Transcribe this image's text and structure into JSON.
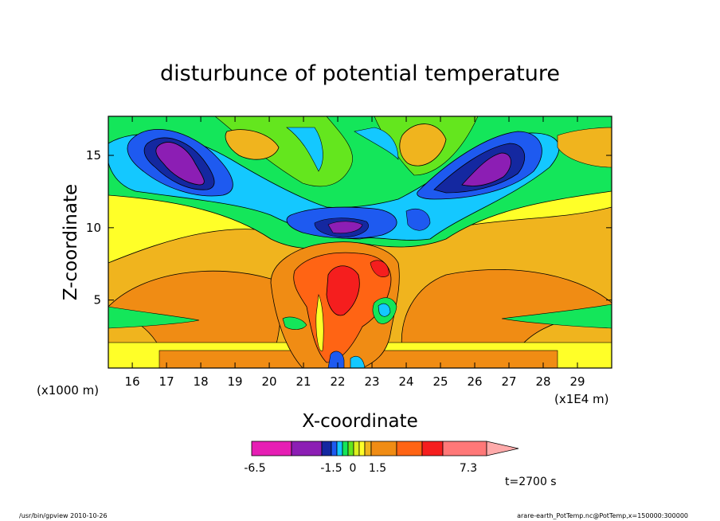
{
  "chart_data": {
    "type": "heatmap",
    "title": "disturbunce of potential temperature",
    "xlabel": "X-coordinate",
    "ylabel": "Z-coordinate",
    "x_unit_left": "(x1000 m)",
    "x_unit_right": "(x1E4 m)",
    "xlim": [
      15.3,
      30.0
    ],
    "ylim": [
      0.3,
      17.7
    ],
    "x_ticks": [
      16,
      17,
      18,
      19,
      20,
      21,
      22,
      23,
      24,
      25,
      26,
      27,
      28,
      29
    ],
    "y_ticks": [
      5,
      10,
      15
    ],
    "time_label": "t=2700 s",
    "colorbar": {
      "labels": [
        "-6.5",
        "-1.5",
        "0",
        "1.5",
        "7.3"
      ],
      "colors": [
        "#e61eb4",
        "#8c1eb4",
        "#1428a0",
        "#1e5af0",
        "#14c8ff",
        "#14e65a",
        "#64e61e",
        "#dcf01e",
        "#ffff28",
        "#f0b41e",
        "#f08c14",
        "#ff6414",
        "#f51e1e",
        "#ff7878",
        "#ffaaaa"
      ]
    },
    "features": [
      {
        "region": "upper-left minimum",
        "x": 17.3,
        "z": 15.0,
        "value": -6.5
      },
      {
        "region": "upper-right minimum",
        "x": 26.3,
        "z": 15.0,
        "value": -6.5
      },
      {
        "region": "central minimum",
        "x": 22.3,
        "z": 10.0,
        "value": -5.0
      },
      {
        "region": "central maximum",
        "x": 22.0,
        "z": 6.5,
        "value": 7.3
      },
      {
        "region": "lower-left warm lobe",
        "x": 18.5,
        "z": 4.0,
        "value": 3.0
      },
      {
        "region": "lower-right warm lobe",
        "x": 26.0,
        "z": 4.0,
        "value": 3.0
      }
    ]
  },
  "footer": {
    "left": "/usr/bin/gpview   2010-10-26",
    "right": "arare-earth_PotTemp.nc@PotTemp,x=150000:300000"
  }
}
